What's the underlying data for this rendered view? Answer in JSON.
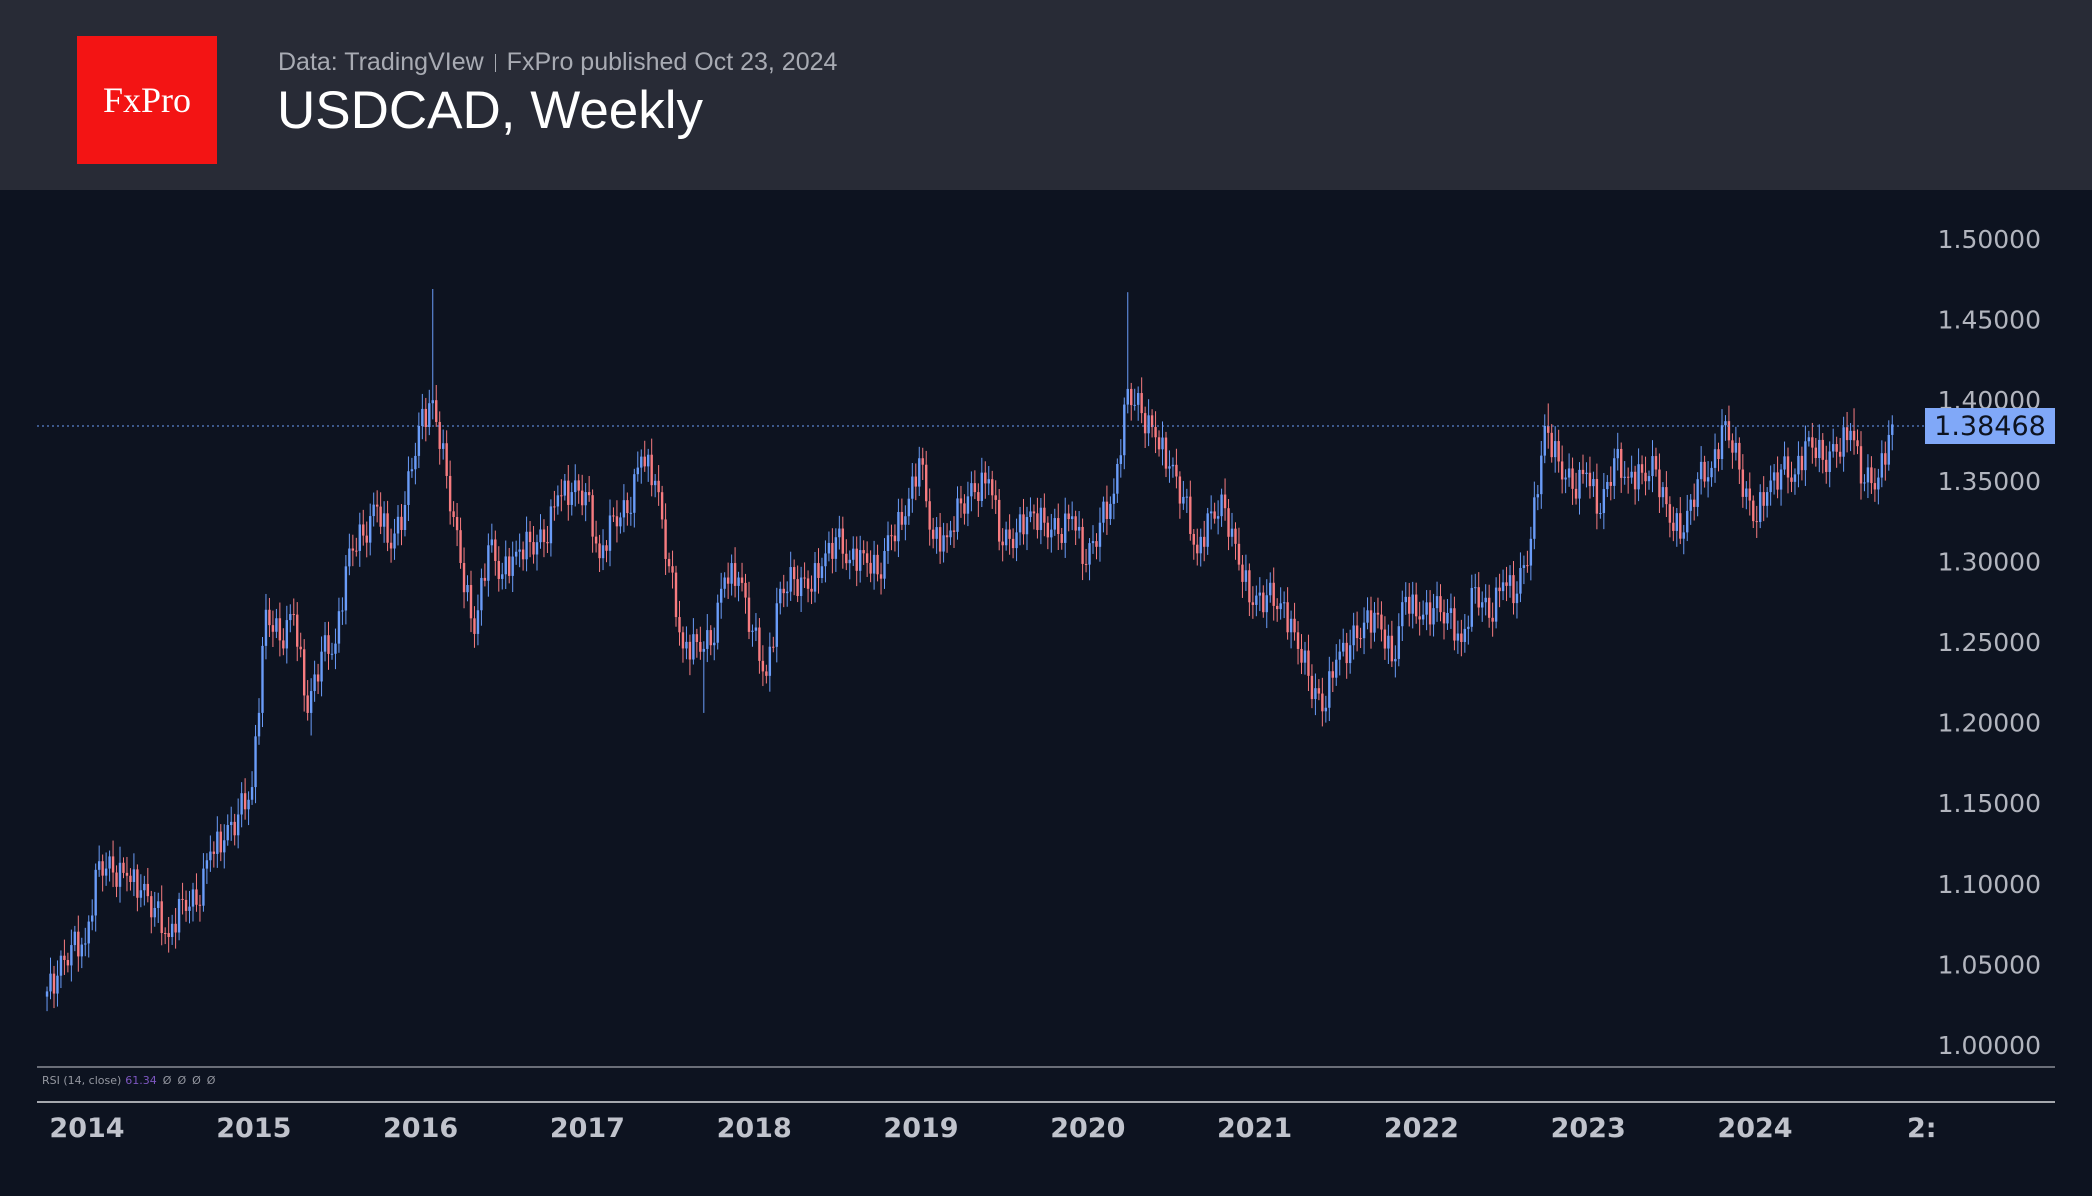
{
  "header": {
    "logo_text": "FxPro",
    "source": "Data: TradingVIew",
    "published": "FxPro published Oct 23, 2024",
    "title": "USDCAD, Weekly"
  },
  "rsi": {
    "label": "RSI (14, close)",
    "value": "61.34",
    "nulls": [
      "Ø",
      "Ø",
      "Ø",
      "Ø"
    ]
  },
  "colors": {
    "up": "#6a9cf8",
    "down": "#f77c80",
    "background": "#0d1320",
    "header": "#282b36"
  },
  "chart_data": {
    "type": "candlestick",
    "title": "USDCAD, Weekly",
    "timeframe": "weekly (approximated from monthly closes)",
    "start_month": "2013-10",
    "first_open": 1.03,
    "monthly_close": [
      1.043,
      1.062,
      1.063,
      1.114,
      1.107,
      1.105,
      1.096,
      1.085,
      1.067,
      1.09,
      1.087,
      1.12,
      1.127,
      1.143,
      1.16,
      1.27,
      1.251,
      1.267,
      1.206,
      1.244,
      1.249,
      1.308,
      1.316,
      1.334,
      1.308,
      1.335,
      1.384,
      1.4,
      1.353,
      1.299,
      1.255,
      1.31,
      1.292,
      1.306,
      1.312,
      1.312,
      1.341,
      1.343,
      1.343,
      1.302,
      1.328,
      1.33,
      1.365,
      1.35,
      1.297,
      1.246,
      1.25,
      1.248,
      1.29,
      1.29,
      1.257,
      1.229,
      1.283,
      1.289,
      1.283,
      1.297,
      1.315,
      1.301,
      1.305,
      1.292,
      1.316,
      1.328,
      1.364,
      1.314,
      1.315,
      1.336,
      1.343,
      1.351,
      1.31,
      1.318,
      1.331,
      1.324,
      1.317,
      1.328,
      1.298,
      1.324,
      1.342,
      1.407,
      1.392,
      1.377,
      1.359,
      1.34,
      1.305,
      1.331,
      1.333,
      1.298,
      1.273,
      1.279,
      1.274,
      1.256,
      1.229,
      1.207,
      1.239,
      1.248,
      1.262,
      1.267,
      1.238,
      1.278,
      1.264,
      1.271,
      1.268,
      1.25,
      1.284,
      1.265,
      1.287,
      1.28,
      1.314,
      1.384,
      1.362,
      1.345,
      1.355,
      1.33,
      1.364,
      1.352,
      1.355,
      1.357,
      1.324,
      1.318,
      1.351,
      1.358,
      1.387,
      1.357,
      1.325,
      1.343,
      1.357,
      1.354,
      1.377,
      1.363,
      1.368,
      1.381,
      1.349,
      1.352,
      1.385
    ],
    "extremes": [
      {
        "month": "2013-10",
        "low": 1.021
      },
      {
        "month": "2016-01",
        "high": 1.469
      },
      {
        "month": "2015-05",
        "low": 1.192
      },
      {
        "month": "2017-09",
        "low": 1.206
      },
      {
        "month": "2020-03",
        "high": 1.467
      },
      {
        "month": "2021-06",
        "low": 1.2
      },
      {
        "month": "2022-10",
        "high": 1.398
      },
      {
        "month": "2024-08",
        "high": 1.395
      }
    ],
    "last_price": "1.38468",
    "y_ticks": [
      "1.00000",
      "1.05000",
      "1.10000",
      "1.15000",
      "1.20000",
      "1.25000",
      "1.30000",
      "1.35000",
      "1.40000",
      "1.45000",
      "1.50000"
    ],
    "ylim": [
      1.0,
      1.5
    ],
    "x_ticks": [
      "2014",
      "2015",
      "2016",
      "2017",
      "2018",
      "2019",
      "2020",
      "2021",
      "2022",
      "2023",
      "2024",
      "2:"
    ],
    "xlabel": "",
    "ylabel": "",
    "grid": false
  }
}
